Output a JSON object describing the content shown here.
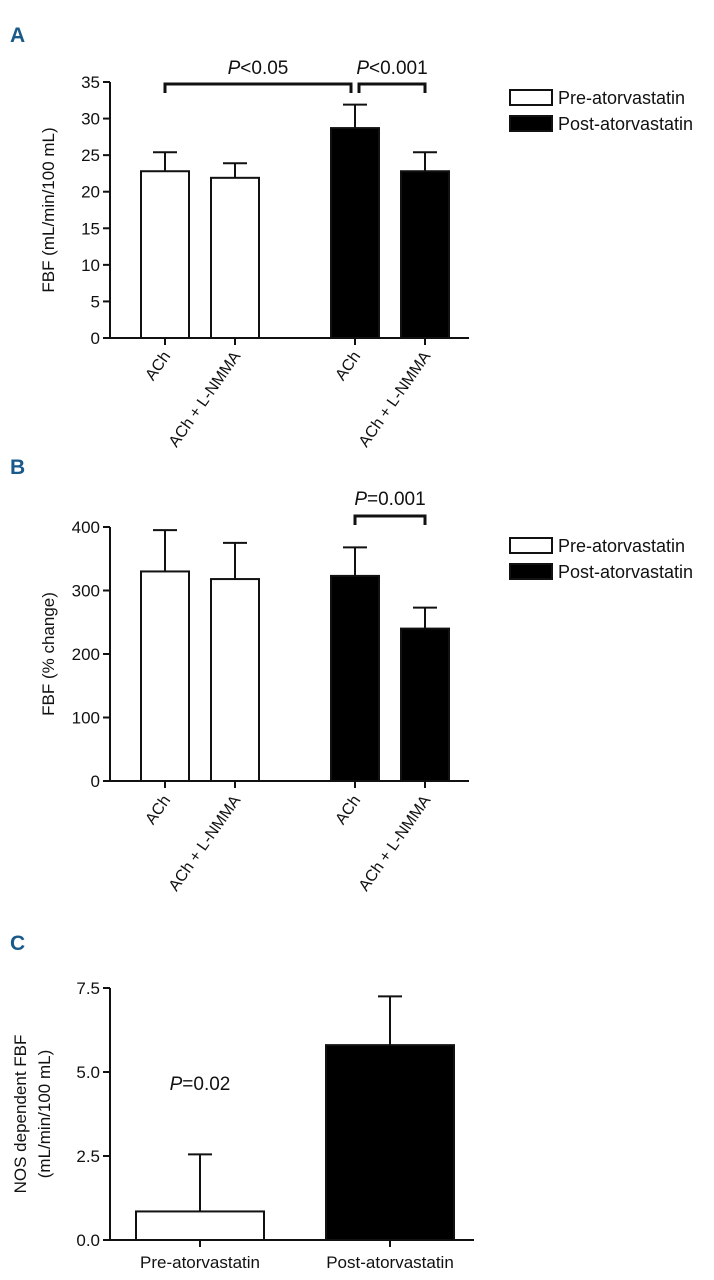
{
  "chart_data": [
    {
      "type": "bar",
      "panel": "A",
      "ylabel": "FBF (mL/min/100 mL)",
      "ylim": [
        0,
        35
      ],
      "yticks": [
        "0",
        "5",
        "10",
        "15",
        "20",
        "25",
        "30",
        "35"
      ],
      "yticks_values": [
        0,
        5,
        10,
        15,
        20,
        25,
        30,
        35
      ],
      "categories": [
        "ACh",
        "ACh + L-NMMA",
        "ACh",
        "ACh + L-NMMA"
      ],
      "values": [
        22.8,
        21.9,
        28.7,
        22.8
      ],
      "errors": [
        2.6,
        2.0,
        3.2,
        2.6
      ],
      "bar_colors": [
        "#ffffff",
        "#ffffff",
        "#000000",
        "#000000"
      ],
      "legend": [
        "Pre-atorvastatin",
        "Post-atorvastatin"
      ],
      "annotations": [
        {
          "italic": "P",
          "rest": "<0.05",
          "from": 0,
          "to": 2
        },
        {
          "italic": "P",
          "rest": "<0.001",
          "from": 2,
          "to": 3
        }
      ]
    },
    {
      "type": "bar",
      "panel": "B",
      "ylabel": "FBF (% change)",
      "ylim": [
        0,
        400
      ],
      "yticks": [
        "0",
        "100",
        "200",
        "300",
        "400"
      ],
      "yticks_values": [
        0,
        100,
        200,
        300,
        400
      ],
      "categories": [
        "ACh",
        "ACh + L-NMMA",
        "ACh",
        "ACh + L-NMMA"
      ],
      "values": [
        330,
        318,
        323,
        240
      ],
      "errors": [
        65,
        57,
        45,
        33
      ],
      "bar_colors": [
        "#ffffff",
        "#ffffff",
        "#000000",
        "#000000"
      ],
      "legend": [
        "Pre-atorvastatin",
        "Post-atorvastatin"
      ],
      "annotations": [
        {
          "italic": "P",
          "rest": "=0.001",
          "from": 2,
          "to": 3
        }
      ]
    },
    {
      "type": "bar",
      "panel": "C",
      "ylabel": [
        "NOS dependent FBF",
        "(mL/min/100 mL)"
      ],
      "ylim": [
        0,
        7.5
      ],
      "yticks": [
        "0.0",
        "2.5",
        "5.0",
        "7.5"
      ],
      "yticks_values": [
        0,
        2.5,
        5.0,
        7.5
      ],
      "categories": [
        "Pre-atorvastatin",
        "Post-atorvastatin"
      ],
      "values": [
        0.85,
        5.8
      ],
      "errors": [
        1.7,
        1.45
      ],
      "bar_colors": [
        "#ffffff",
        "#000000"
      ],
      "annotations": [
        {
          "italic": "P",
          "rest": "=0.02"
        }
      ]
    }
  ]
}
